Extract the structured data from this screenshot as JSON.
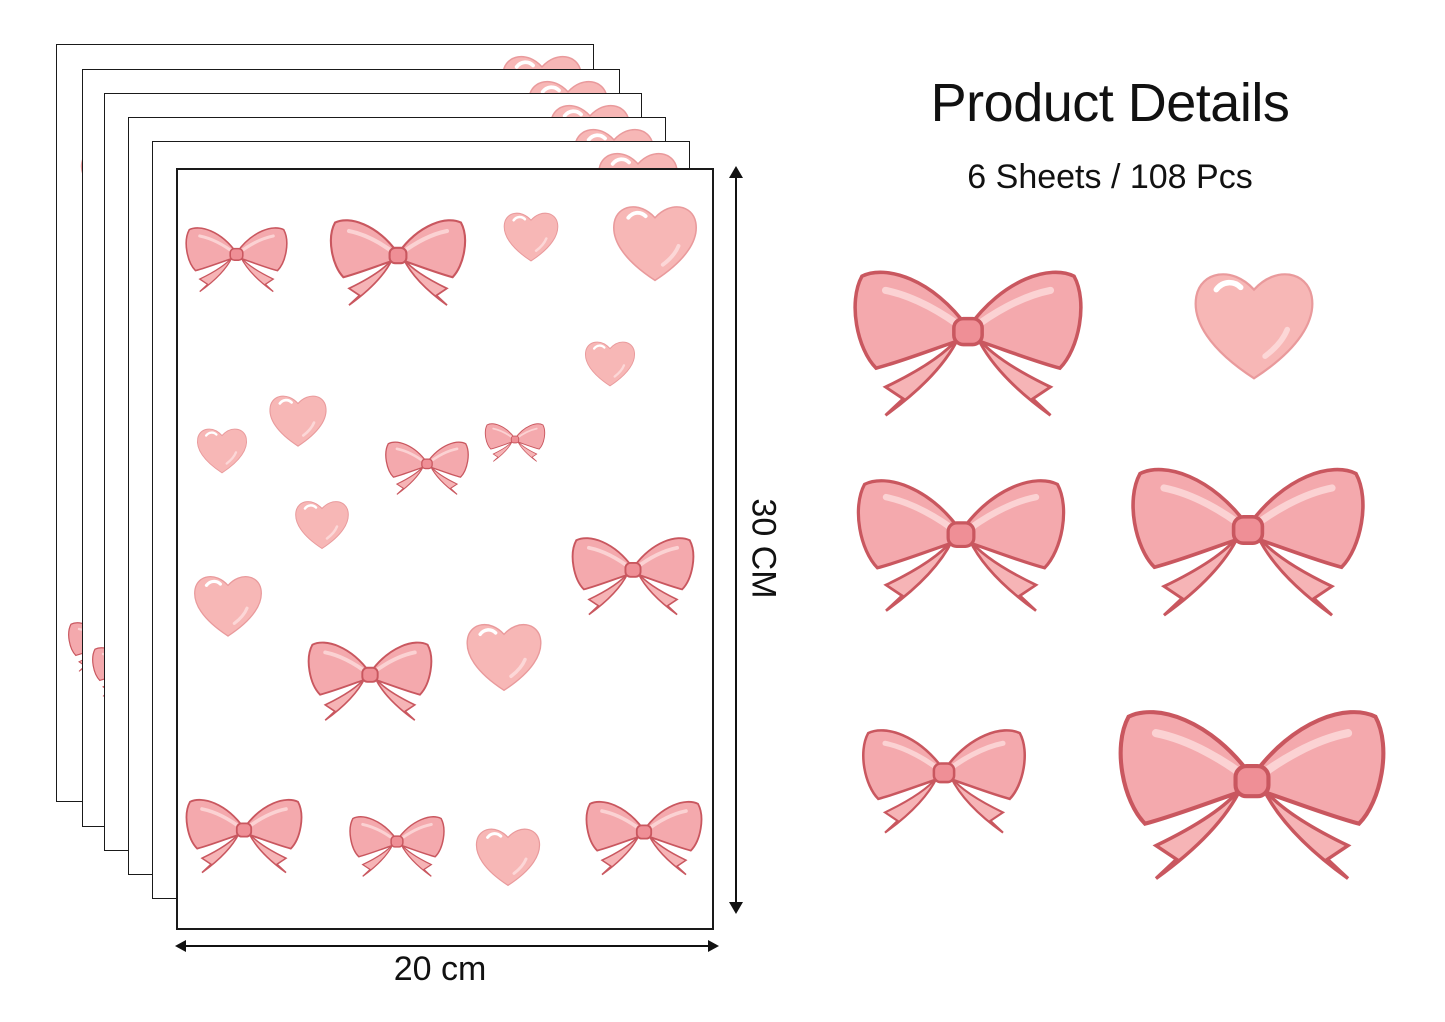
{
  "product": {
    "title": "Product Details",
    "subtitle": "6 Sheets / 108 Pcs"
  },
  "dimensions": {
    "width_label": "20 cm",
    "height_label": "30 CM"
  },
  "colors": {
    "sheet_border": "#1a1a1a",
    "bow_fill": "#f4a9ad",
    "bow_light": "#fbd2d3",
    "bow_stroke": "#c9575f",
    "heart_fill": "#f7b7b6",
    "heart_highlight": "#ffffff",
    "arrow": "#111111"
  },
  "icons": {
    "bow": "bow-icon",
    "heart": "heart-icon"
  }
}
